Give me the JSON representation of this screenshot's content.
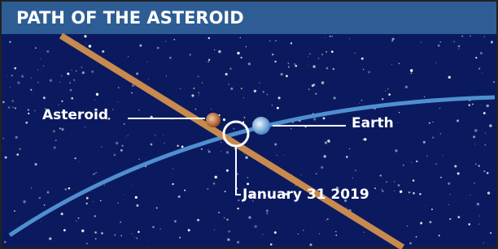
{
  "header": {
    "title": "PATH OF THE ASTEROID"
  },
  "labels": {
    "asteroid": "Asteroid",
    "earth": "Earth",
    "date": "January 31 2019"
  }
}
